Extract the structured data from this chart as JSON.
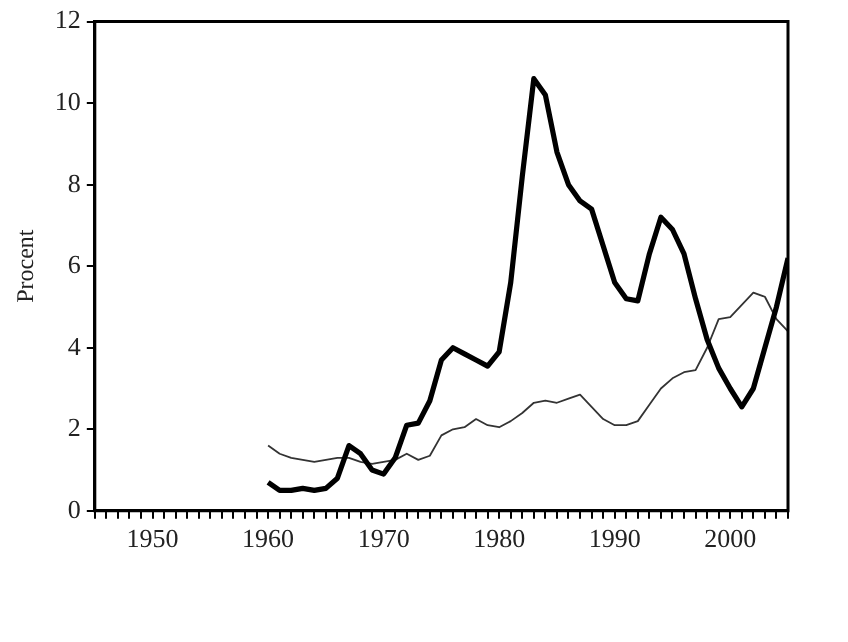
{
  "chart_data": {
    "type": "line",
    "ylabel": "Procent",
    "x": [
      1960,
      1961,
      1962,
      1963,
      1964,
      1965,
      1966,
      1967,
      1968,
      1969,
      1970,
      1971,
      1972,
      1973,
      1974,
      1975,
      1976,
      1977,
      1978,
      1979,
      1980,
      1981,
      1982,
      1983,
      1984,
      1985,
      1986,
      1987,
      1988,
      1989,
      1990,
      1991,
      1992,
      1993,
      1994,
      1995,
      1996,
      1997,
      1998,
      1999,
      2000,
      2001,
      2002,
      2003,
      2004,
      2005
    ],
    "series": [
      {
        "color": "#000000",
        "values": [
          0.7,
          0.5,
          0.5,
          0.55,
          0.5,
          0.55,
          0.8,
          1.6,
          1.4,
          1.0,
          0.9,
          1.3,
          2.1,
          2.15,
          2.7,
          3.7,
          4.0,
          3.85,
          3.7,
          3.55,
          3.9,
          5.6,
          8.2,
          10.6,
          10.2,
          8.8,
          8.0,
          7.6,
          7.4,
          6.5,
          5.6,
          5.2,
          5.15,
          6.3,
          7.2,
          6.9,
          6.3,
          5.2,
          4.2,
          3.5,
          3.0,
          2.55,
          3.0,
          4.0,
          5.0,
          6.2
        ]
      },
      {
        "color": "#333333",
        "values": [
          1.6,
          1.4,
          1.3,
          1.25,
          1.2,
          1.25,
          1.3,
          1.3,
          1.2,
          1.15,
          1.2,
          1.25,
          1.4,
          1.25,
          1.35,
          1.85,
          2.0,
          2.05,
          2.25,
          2.1,
          2.05,
          2.2,
          2.4,
          2.65,
          2.7,
          2.65,
          2.75,
          2.85,
          2.55,
          2.25,
          2.1,
          2.1,
          2.2,
          2.6,
          3.0,
          3.25,
          3.4,
          3.45,
          4.0,
          4.7,
          4.75,
          5.05,
          5.35,
          5.25,
          4.7,
          4.4
        ]
      }
    ],
    "xlim": [
      1945,
      2005
    ],
    "xticks": [
      {
        "value": 1945,
        "label": null
      },
      {
        "value": 1946,
        "label": null
      },
      {
        "value": 1947,
        "label": null
      },
      {
        "value": 1948,
        "label": null
      },
      {
        "value": 1949,
        "label": null
      },
      1950,
      {
        "value": 1951,
        "label": null
      },
      {
        "value": 1952,
        "label": null
      },
      {
        "value": 1953,
        "label": null
      },
      {
        "value": 1954,
        "label": null
      },
      {
        "value": 1955,
        "label": null
      },
      {
        "value": 1956,
        "label": null
      },
      {
        "value": 1957,
        "label": null
      },
      {
        "value": 1958,
        "label": null
      },
      {
        "value": 1959,
        "label": null
      },
      1960,
      {
        "value": 1961,
        "label": null
      },
      {
        "value": 1962,
        "label": null
      },
      {
        "value": 1963,
        "label": null
      },
      {
        "value": 1964,
        "label": null
      },
      {
        "value": 1965,
        "label": null
      },
      {
        "value": 1966,
        "label": null
      },
      {
        "value": 1967,
        "label": null
      },
      {
        "value": 1968,
        "label": null
      },
      {
        "value": 1969,
        "label": null
      },
      1970,
      {
        "value": 1971,
        "label": null
      },
      {
        "value": 1972,
        "label": null
      },
      {
        "value": 1973,
        "label": null
      },
      {
        "value": 1974,
        "label": null
      },
      {
        "value": 1975,
        "label": null
      },
      {
        "value": 1976,
        "label": null
      },
      {
        "value": 1977,
        "label": null
      },
      {
        "value": 1978,
        "label": null
      },
      {
        "value": 1979,
        "label": null
      },
      1980,
      {
        "value": 1981,
        "label": null
      },
      {
        "value": 1982,
        "label": null
      },
      {
        "value": 1983,
        "label": null
      },
      {
        "value": 1984,
        "label": null
      },
      {
        "value": 1985,
        "label": null
      },
      {
        "value": 1986,
        "label": null
      },
      {
        "value": 1987,
        "label": null
      },
      {
        "value": 1988,
        "label": null
      },
      {
        "value": 1989,
        "label": null
      },
      1990,
      {
        "value": 1991,
        "label": null
      },
      {
        "value": 1992,
        "label": null
      },
      {
        "value": 1993,
        "label": null
      },
      {
        "value": 1994,
        "label": null
      },
      {
        "value": 1995,
        "label": null
      },
      {
        "value": 1996,
        "label": null
      },
      {
        "value": 1997,
        "label": null
      },
      {
        "value": 1998,
        "label": null
      },
      {
        "value": 1999,
        "label": null
      },
      2000,
      {
        "value": 2001,
        "label": null
      },
      {
        "value": 2002,
        "label": null
      },
      {
        "value": 2003,
        "label": null
      },
      {
        "value": 2004,
        "label": null
      },
      {
        "value": 2005,
        "label": null
      }
    ],
    "ylim": [
      0,
      12
    ],
    "yticks": [
      0,
      2,
      4,
      6,
      8,
      10,
      12
    ],
    "grid": false,
    "legend": false,
    "marker": "none",
    "line_style": "solid"
  }
}
